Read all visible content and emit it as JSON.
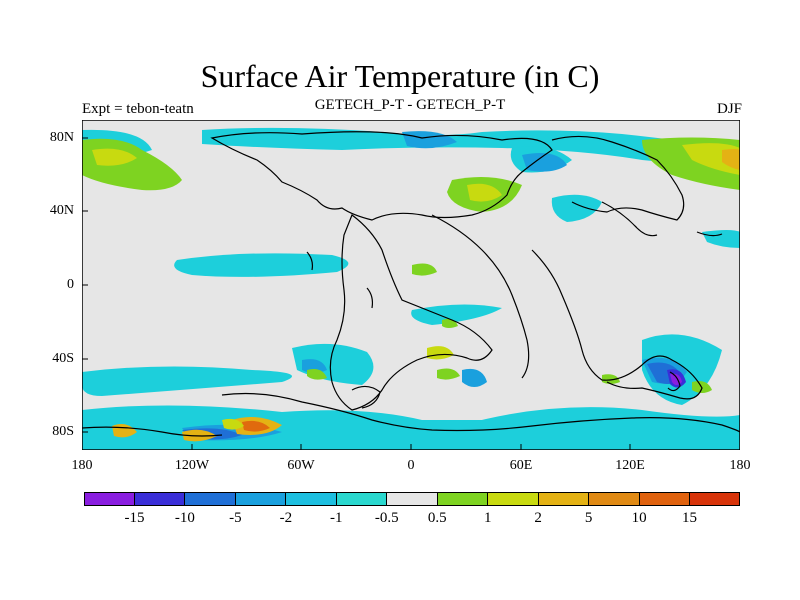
{
  "title": "Surface Air Temperature (in C)",
  "subtitle_left": "Expt = tebon-teatn",
  "subtitle_center": "GETECH_P-T - GETECH_P-T",
  "subtitle_right": "DJF",
  "lat_labels": [
    "80N",
    "40N",
    "0",
    "40S",
    "80S"
  ],
  "lon_labels": [
    "180",
    "120W",
    "60W",
    "0",
    "60E",
    "120E",
    "180"
  ],
  "colorbar": {
    "labels": [
      "-15",
      "-10",
      "-5",
      "-2",
      "-1",
      "-0.5",
      "0.5",
      "1",
      "2",
      "5",
      "10",
      "15"
    ],
    "colors": [
      "#8a1ee0",
      "#3a2ed8",
      "#1f6fd6",
      "#1aa0de",
      "#1dbfe0",
      "#2ad8cf",
      "#e6e6e6",
      "#7ed321",
      "#c8da10",
      "#e4b214",
      "#e08a14",
      "#e0620e",
      "#d8340a"
    ]
  },
  "colors": {
    "neutral": "#e6e6e6",
    "cyan": "#1dcfdb",
    "light_blue": "#1aa0de",
    "blue": "#1f6fd6",
    "dark_blue": "#3a2ed8",
    "purple": "#8a1ee0",
    "green": "#7ed321",
    "yellow_green": "#c8da10",
    "orange": "#e4b214",
    "dark_orange": "#e06a0e",
    "coast": "#000000"
  }
}
